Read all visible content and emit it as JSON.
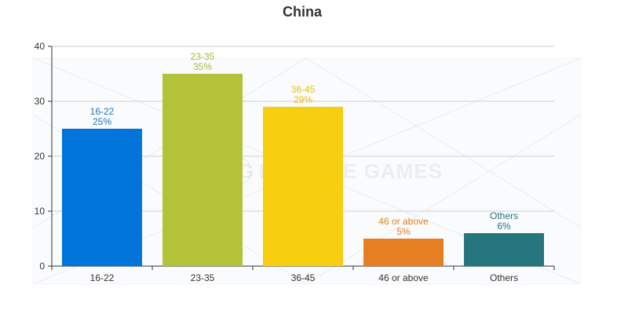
{
  "chart_data": {
    "type": "bar",
    "title": "China",
    "categories": [
      "16-22",
      "23-35",
      "36-45",
      "46 or above",
      "Others"
    ],
    "values": [
      25,
      35,
      29,
      5,
      6
    ],
    "percent_labels": [
      "25%",
      "35%",
      "29%",
      "5%",
      "6%"
    ],
    "colors": [
      "#0074d9",
      "#b4c23a",
      "#f8ce10",
      "#e67e22",
      "#267680"
    ],
    "label_colors": [
      "#1c78c4",
      "#a8b93a",
      "#eabf12",
      "#e67e22",
      "#267680"
    ],
    "ylim": [
      0,
      40
    ],
    "y_ticks": [
      0,
      10,
      20,
      30,
      40
    ],
    "grid": true,
    "legend": "none"
  },
  "watermark": {
    "logo_text": "MG",
    "text": "MIRACLE GAMES"
  }
}
